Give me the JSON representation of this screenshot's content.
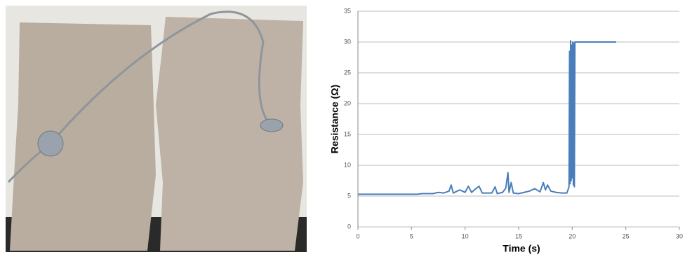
{
  "chart_data": {
    "type": "line",
    "x_label": "Time (s)",
    "y_label": "Resistance (Ω)",
    "xlim": [
      0,
      30
    ],
    "xticks": [
      0,
      5,
      10,
      15,
      20,
      25,
      30
    ],
    "ylim": [
      0,
      35
    ],
    "yticks": [
      0,
      5,
      10,
      15,
      20,
      25,
      30,
      35
    ],
    "grid": true,
    "series": [
      {
        "color": "#4a7ebb",
        "x": [
          0,
          5.5,
          6,
          7,
          7.5,
          8,
          8.5,
          8.7,
          8.9,
          9.5,
          10,
          10.3,
          10.6,
          11,
          11.3,
          11.6,
          12.5,
          12.8,
          13,
          13.5,
          13.8,
          14,
          14.1,
          14.3,
          14.5,
          15,
          15.5,
          16,
          16.5,
          17,
          17.3,
          17.5,
          17.7,
          18,
          18.5,
          19,
          19.5,
          19.7,
          19.75,
          19.8,
          19.85,
          19.9,
          19.95,
          20.0,
          20.05,
          20.1,
          20.15,
          20.2,
          20.25,
          20.3,
          24.1
        ],
        "values": [
          5.3,
          5.3,
          5.4,
          5.4,
          5.6,
          5.5,
          5.8,
          6.8,
          5.5,
          6.0,
          5.6,
          6.6,
          5.6,
          6.2,
          6.6,
          5.5,
          5.5,
          6.5,
          5.4,
          5.6,
          6.3,
          8.8,
          5.6,
          7.2,
          5.5,
          5.4,
          5.6,
          5.8,
          6.2,
          5.7,
          7.2,
          6.0,
          6.8,
          5.8,
          5.6,
          5.5,
          5.5,
          6.5,
          28.5,
          7.0,
          30.2,
          7.5,
          29.5,
          8.0,
          30.0,
          6.8,
          29.8,
          6.5,
          30.0,
          30.0,
          30.0
        ]
      }
    ]
  }
}
